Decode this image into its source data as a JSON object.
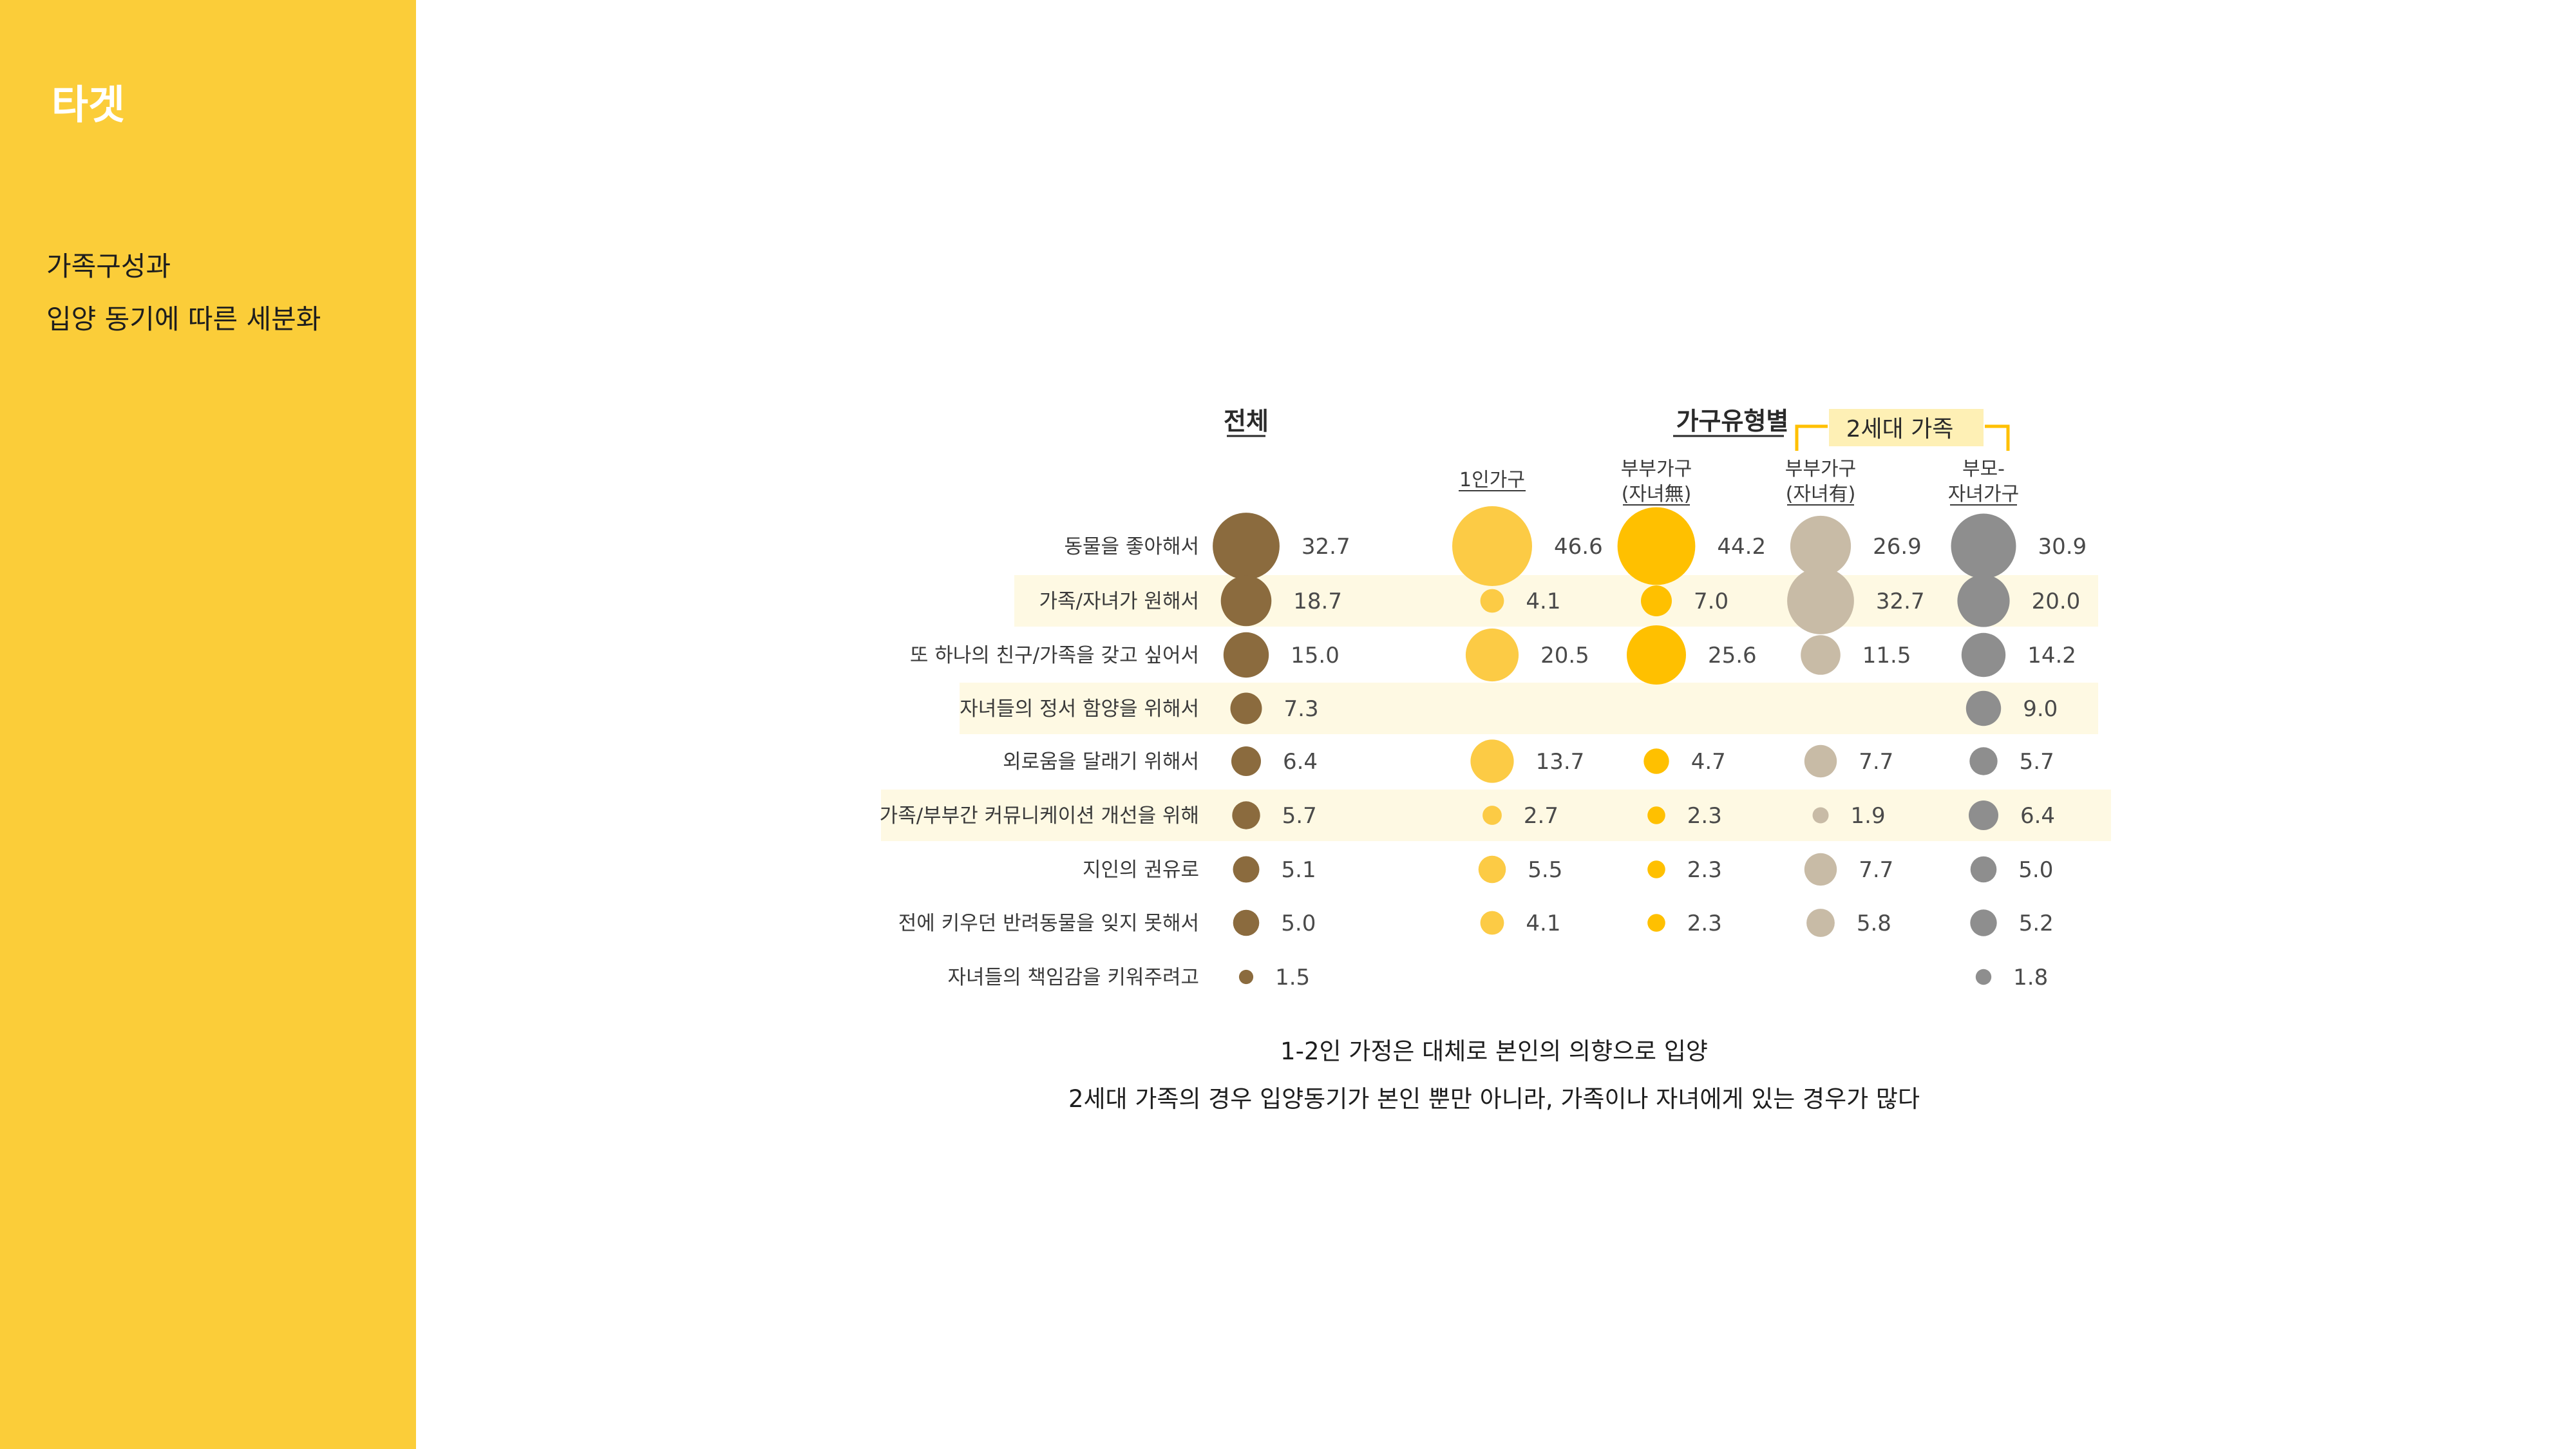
{
  "sidebar": {
    "title": "타겟",
    "subtitle_line1": "가족구성과",
    "subtitle_line2": "입양 동기에 따른 세분화"
  },
  "caption": {
    "line1": "1-2인 가정은 대체로 본인의 의향으로 입양",
    "line2": "2세대 가족의 경우 입양동기가 본인 뿐만 아니라, 가족이나 자녀에게 있는 경우가 많다"
  },
  "chart_data": {
    "type": "bubble-table",
    "group_headers": {
      "total": "전체",
      "by_household": "가구유형별",
      "two_gen": "2세대 가족"
    },
    "categories": [
      "동물을 좋아해서",
      "가족/자녀가 원해서",
      "또 하나의 친구/가족을 갖고 싶어서",
      "자녀들의 정서 함양을 위해서",
      "외로움을 달래기 위해서",
      "가족/부부간 커뮤니케이션 개선을 위해",
      "지인의 권유로",
      "전에 키우던 반려동물을 잊지 못해서",
      "자녀들의 책임감을 키워주려고"
    ],
    "highlighted_rows": [
      1,
      3,
      5
    ],
    "series": [
      {
        "name": "전체",
        "header_line1": "",
        "header_line2": "",
        "color": "#8B6B3E",
        "values": [
          32.7,
          18.7,
          15.0,
          7.3,
          6.4,
          5.7,
          5.1,
          5.0,
          1.5
        ],
        "labels": [
          "32.7",
          "18.7",
          "15.0",
          "7.3",
          "6.4",
          "5.7",
          "5.1",
          "5.0",
          "1.5"
        ]
      },
      {
        "name": "1인가구",
        "header_line1": "1인가구",
        "header_line2": "",
        "color": "#FCCB45",
        "values": [
          46.6,
          4.1,
          20.5,
          null,
          13.7,
          2.7,
          5.5,
          4.1,
          null
        ],
        "labels": [
          "46.6",
          "4.1",
          "20.5",
          "",
          "13.7",
          "2.7",
          "5.5",
          "4.1",
          ""
        ]
      },
      {
        "name": "부부가구(자녀無)",
        "header_line1": "부부가구",
        "header_line2": "(자녀無)",
        "color": "#FFC000",
        "values": [
          44.2,
          7.0,
          25.6,
          null,
          4.7,
          2.3,
          2.3,
          2.3,
          null
        ],
        "labels": [
          "44.2",
          "7.0",
          "25.6",
          "",
          "4.7",
          "2.3",
          "2.3",
          "2.3",
          ""
        ]
      },
      {
        "name": "부부가구(자녀有)",
        "header_line1": "부부가구",
        "header_line2": "(자녀有)",
        "color": "#C8BBA6",
        "values": [
          26.9,
          32.7,
          11.5,
          null,
          7.7,
          1.9,
          7.7,
          5.8,
          null
        ],
        "labels": [
          "26.9",
          "32.7",
          "11.5",
          "",
          "7.7",
          "1.9",
          "7.7",
          "5.8",
          ""
        ]
      },
      {
        "name": "부모-자녀가구",
        "header_line1": "부모-",
        "header_line2": "자녀가구",
        "color": "#8E8E8E",
        "values": [
          30.9,
          20.0,
          14.2,
          9.0,
          5.7,
          6.4,
          5.0,
          5.2,
          1.8
        ],
        "labels": [
          "30.9",
          "20.0",
          "14.2",
          "9.0",
          "5.7",
          "6.4",
          "5.0",
          "5.2",
          "1.8"
        ]
      }
    ]
  }
}
